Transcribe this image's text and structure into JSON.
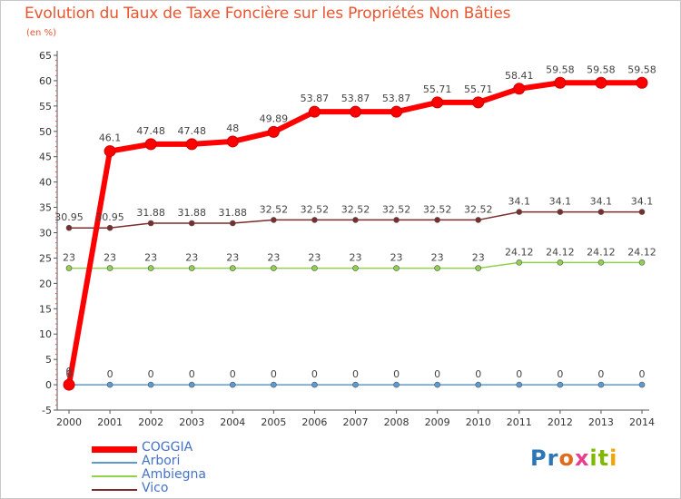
{
  "title": "Evolution du Taux de Taxe Foncière sur les Propriétés Non Bâties",
  "subtitle": "(en %)",
  "logo_text": "Proxiti",
  "chart_data": {
    "type": "line",
    "title": "Evolution du Taux de Taxe Foncière sur les Propriétés Non Bâties",
    "ylabel": "(en %)",
    "xlabel": "",
    "ylim": [
      -5,
      65
    ],
    "yticks": [
      -5,
      0,
      5,
      10,
      15,
      20,
      25,
      30,
      35,
      40,
      45,
      50,
      55,
      60,
      65
    ],
    "grid": false,
    "legend_position": "bottom-left",
    "x": [
      "2000",
      "2001",
      "2002",
      "2003",
      "2004",
      "2005",
      "2006",
      "2007",
      "2008",
      "2009",
      "2010",
      "2011",
      "2012",
      "2013",
      "2014"
    ],
    "series": [
      {
        "name": "COGGIA",
        "color": "#ff0000",
        "values": [
          0,
          46.1,
          47.48,
          47.48,
          48,
          49.89,
          53.87,
          53.87,
          53.87,
          55.71,
          55.71,
          58.41,
          59.58,
          59.58,
          59.58
        ],
        "labels": [
          "0",
          "46.1",
          "47.48",
          "47.48",
          "48",
          "49.89",
          "53.87",
          "53.87",
          "53.87",
          "55.71",
          "55.71",
          "58.41",
          "59.58",
          "59.58",
          "59.58"
        ]
      },
      {
        "name": "Arbori",
        "color": "#5b9bd5",
        "values": [
          0,
          0,
          0,
          0,
          0,
          0,
          0,
          0,
          0,
          0,
          0,
          0,
          0,
          0,
          0
        ],
        "labels": [
          "0",
          "0",
          "0",
          "0",
          "0",
          "0",
          "0",
          "0",
          "0",
          "0",
          "0",
          "0",
          "0",
          "0",
          "0"
        ]
      },
      {
        "name": "Ambiegna",
        "color": "#92d050",
        "values": [
          23,
          23,
          23,
          23,
          23,
          23,
          23,
          23,
          23,
          23,
          23,
          24.12,
          24.12,
          24.12,
          24.12
        ],
        "labels": [
          "23",
          "23",
          "23",
          "23",
          "23",
          "23",
          "23",
          "23",
          "23",
          "23",
          "23",
          "24.12",
          "24.12",
          "24.12",
          "24.12"
        ]
      },
      {
        "name": "Vico",
        "color": "#7b2c2c",
        "values": [
          30.95,
          30.95,
          31.88,
          31.88,
          31.88,
          32.52,
          32.52,
          32.52,
          32.52,
          32.52,
          32.52,
          34.1,
          34.1,
          34.1,
          34.1
        ],
        "labels": [
          "30.95",
          "30.95",
          "31.88",
          "31.88",
          "31.88",
          "32.52",
          "32.52",
          "32.52",
          "32.52",
          "32.52",
          "32.52",
          "34.1",
          "34.1",
          "34.1",
          "34.1"
        ]
      }
    ]
  }
}
